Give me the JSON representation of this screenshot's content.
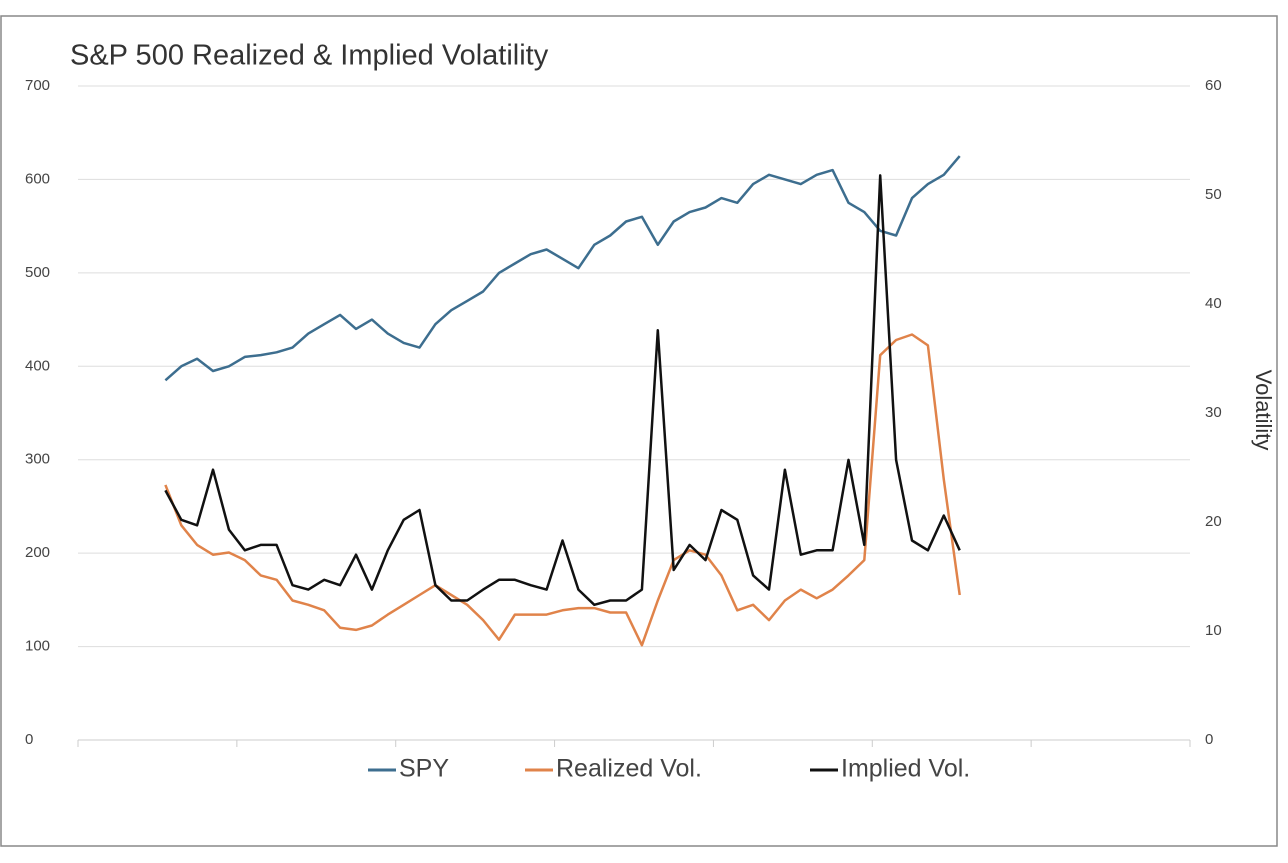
{
  "chart_data": {
    "type": "line",
    "title": "S&P 500 Realized & Implied Volatility",
    "y2label": "Volatility",
    "categories": [
      null,
      null,
      null,
      null,
      null,
      null,
      null,
      null,
      null,
      null,
      null,
      null,
      null,
      null,
      null,
      null,
      null,
      null,
      null,
      null,
      null,
      null,
      null,
      null,
      null,
      null,
      null,
      null,
      null,
      null,
      null,
      null,
      null,
      null,
      null,
      null,
      null,
      null,
      null,
      null,
      null,
      null,
      null,
      null,
      null,
      null,
      null,
      null,
      null,
      null,
      null,
      null,
      null,
      null,
      null,
      null,
      null,
      null,
      null,
      null,
      null,
      null,
      null,
      null,
      null,
      null,
      null,
      null,
      null,
      null
    ],
    "ylim": [
      0,
      700
    ],
    "yticks": [
      0,
      100,
      200,
      300,
      400,
      500,
      600,
      700
    ],
    "y2lim": [
      0,
      60
    ],
    "y2ticks": [
      0,
      10,
      20,
      30,
      40,
      50,
      60
    ],
    "grid": true,
    "legend": "bottom",
    "series": [
      {
        "name": "SPY",
        "color": "#3d6e8f",
        "values": [
          null,
          null,
          null,
          null,
          null,
          385,
          400,
          408,
          395,
          400,
          410,
          412,
          415,
          420,
          435,
          445,
          455,
          440,
          450,
          435,
          425,
          420,
          445,
          460,
          470,
          480,
          500,
          510,
          520,
          525,
          515,
          505,
          530,
          540,
          555,
          560,
          530,
          555,
          565,
          570,
          580,
          575,
          595,
          605,
          600,
          595,
          605,
          610,
          575,
          565,
          545,
          540,
          580,
          595,
          605,
          625,
          null,
          null,
          null,
          null,
          null,
          null,
          null,
          null,
          null,
          null,
          null,
          null,
          null,
          null
        ]
      },
      {
        "name": "Realized Vol.",
        "color": "#e0834a",
        "axis": "y2",
        "values": [
          null,
          null,
          null,
          null,
          null,
          23.4,
          19.7,
          17.9,
          17,
          17.2,
          16.5,
          15.1,
          14.7,
          12.8,
          12.4,
          11.9,
          10.3,
          10.1,
          10.5,
          11.5,
          12.4,
          13.3,
          14.2,
          13.3,
          12.4,
          11,
          9.2,
          11.5,
          11.5,
          11.5,
          11.9,
          12.1,
          12.1,
          11.7,
          11.7,
          8.7,
          12.8,
          16.5,
          17.4,
          17,
          15.1,
          11.9,
          12.4,
          11,
          12.8,
          13.8,
          13,
          13.8,
          15.1,
          16.5,
          35.3,
          36.7,
          37.2,
          36.2,
          23.9,
          13.3,
          null,
          null,
          null,
          null,
          null,
          null,
          null,
          null,
          null,
          null,
          null,
          null,
          null,
          null
        ]
      },
      {
        "name": "Implied Vol.",
        "color": "#111111",
        "axis": "y2",
        "values": [
          null,
          null,
          null,
          null,
          null,
          22.9,
          20.2,
          19.7,
          24.8,
          19.3,
          17.4,
          17.9,
          17.9,
          14.2,
          13.8,
          14.7,
          14.2,
          17,
          13.8,
          17.4,
          20.2,
          21.1,
          14.2,
          12.8,
          12.8,
          13.8,
          14.7,
          14.7,
          14.2,
          13.8,
          18.3,
          13.8,
          12.4,
          12.8,
          12.8,
          13.8,
          37.6,
          15.6,
          17.9,
          16.5,
          21.1,
          20.2,
          15.1,
          13.8,
          24.8,
          17,
          17.4,
          17.4,
          25.7,
          17.9,
          51.8,
          25.7,
          18.3,
          17.4,
          20.6,
          17.4,
          null,
          null,
          null,
          null,
          null,
          null,
          null,
          null,
          null,
          null,
          null,
          null,
          null,
          null
        ]
      }
    ]
  }
}
